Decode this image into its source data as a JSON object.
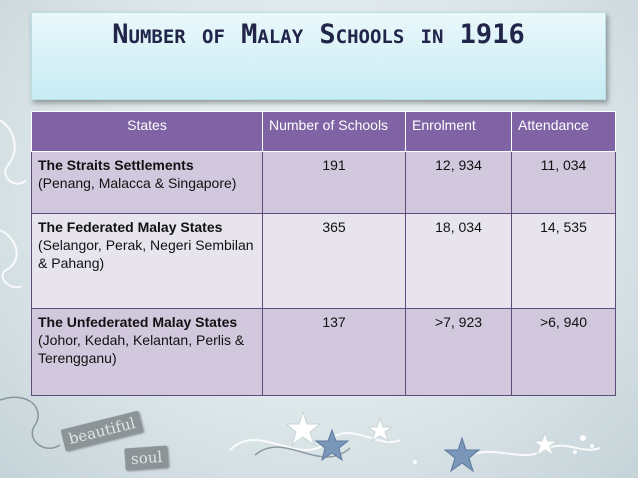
{
  "slide": {
    "title": "Number of Malay Schools in 1916"
  },
  "table": {
    "headers": [
      "States",
      "Number of Schools",
      "Enrolment",
      "Attendance"
    ],
    "rows": [
      {
        "state_name": "The Straits Settlements",
        "state_detail": "(Penang, Malacca & Singapore)",
        "schools": "191",
        "enrolment": "12, 934",
        "attendance": "11, 034"
      },
      {
        "state_name": "The Federated Malay States",
        "state_detail": "(Selangor, Perak, Negeri Sembilan & Pahang)",
        "schools": "365",
        "enrolment": "18, 034",
        "attendance": "14, 535"
      },
      {
        "state_name": "The Unfederated Malay States",
        "state_detail": "(Johor, Kedah, Kelantan, Perlis & Terengganu)",
        "schools": "137",
        "enrolment": ">7, 923",
        "attendance": ">6, 940"
      }
    ]
  },
  "decor": {
    "tag_1": "beautiful",
    "tag_2": "soul"
  },
  "colors": {
    "header_bg": "#7f63a4",
    "row_odd_bg": "#d1c8dd",
    "row_even_bg": "#e8e4ee",
    "title_text": "#22254a"
  }
}
